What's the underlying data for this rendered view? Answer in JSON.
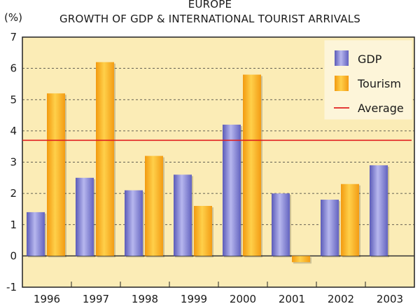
{
  "chart_data": {
    "type": "bar",
    "title": "EUROPE",
    "subtitle": "GROWTH OF GDP & INTERNATIONAL TOURIST ARRIVALS",
    "ylabel": "(%)",
    "xlabel": "",
    "categories": [
      "1996",
      "1997",
      "1998",
      "1999",
      "2000",
      "2001",
      "2002",
      "2003"
    ],
    "series": [
      {
        "name": "GDP",
        "values": [
          1.4,
          2.5,
          2.1,
          2.6,
          4.2,
          2.0,
          1.8,
          2.9
        ]
      },
      {
        "name": "Tourism",
        "values": [
          5.2,
          6.2,
          3.2,
          1.6,
          5.8,
          -0.2,
          2.3,
          null
        ]
      }
    ],
    "average": {
      "name": "Average",
      "value": 3.7
    },
    "ylim": [
      -1,
      7
    ],
    "yticks": [
      -1,
      0,
      1,
      2,
      3,
      4,
      5,
      6,
      7
    ],
    "grid": true,
    "legend_position": "top-right",
    "colors": {
      "gdp": "#7f7fd0",
      "tourism": "#f7a823",
      "average": "#e02020",
      "plot_bg": "#fbecb6"
    }
  }
}
